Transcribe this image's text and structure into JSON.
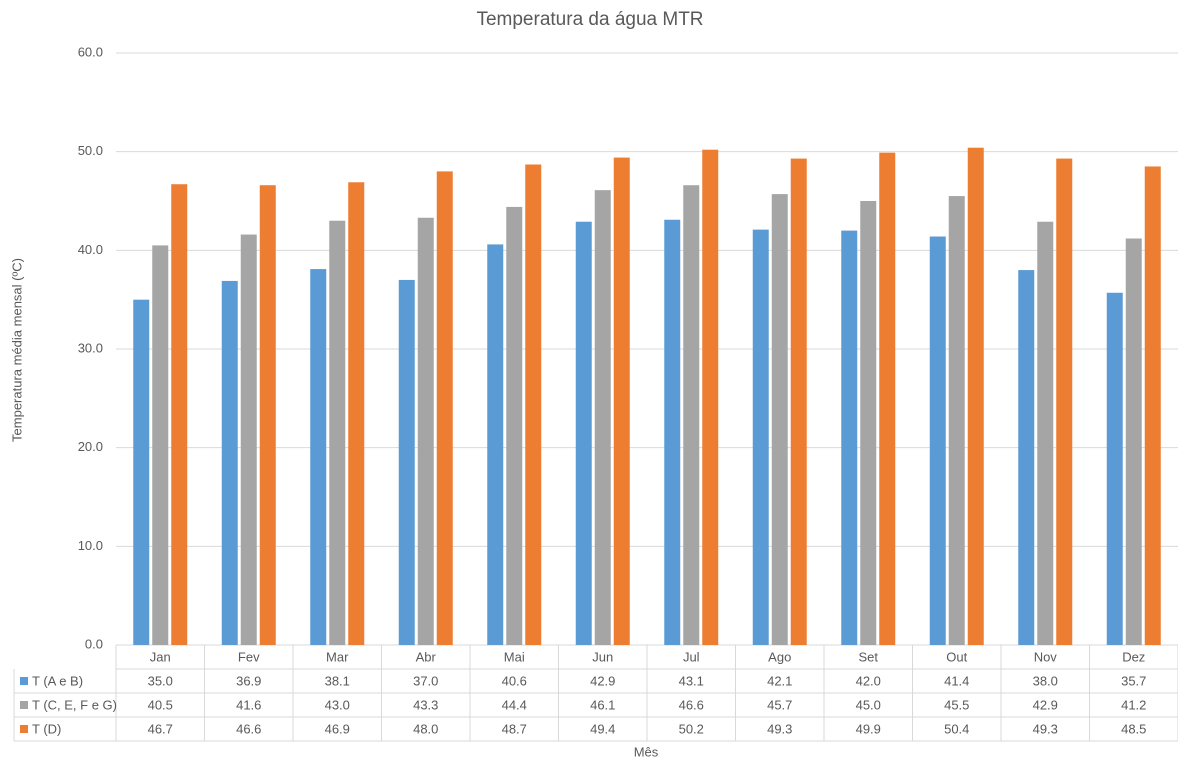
{
  "chart_data": {
    "type": "bar",
    "title": "Temperatura da água MTR",
    "x_label": "Mês",
    "y_label": "Temperatura média mensal (ºC)",
    "categories": [
      "Jan",
      "Fev",
      "Mar",
      "Abr",
      "Mai",
      "Jun",
      "Jul",
      "Ago",
      "Set",
      "Out",
      "Nov",
      "Dez"
    ],
    "series": [
      {
        "name": "T (A e B)",
        "color": "#5b9bd5",
        "values": [
          35.0,
          36.9,
          38.1,
          37.0,
          40.6,
          42.9,
          43.1,
          42.1,
          42.0,
          41.4,
          38.0,
          35.7
        ],
        "value_labels": [
          "35.0",
          "36.9",
          "38.1",
          "37.0",
          "40.6",
          "42.9",
          "43.1",
          "42.1",
          "42.0",
          "41.4",
          "38.0",
          "35.7"
        ]
      },
      {
        "name": "T (C, E, F e G)",
        "color": "#a5a5a5",
        "values": [
          40.5,
          41.6,
          43.0,
          43.3,
          44.4,
          46.1,
          46.6,
          45.7,
          45.0,
          45.5,
          42.9,
          41.2
        ],
        "value_labels": [
          "40.5",
          "41.6",
          "43.0",
          "43.3",
          "44.4",
          "46.1",
          "46.6",
          "45.7",
          "45.0",
          "45.5",
          "42.9",
          "41.2"
        ]
      },
      {
        "name": "T (D)",
        "color": "#ed7d31",
        "values": [
          46.7,
          46.6,
          46.9,
          48.0,
          48.7,
          49.4,
          50.2,
          49.3,
          49.9,
          50.4,
          49.3,
          48.5
        ],
        "value_labels": [
          "46.7",
          "46.6",
          "46.9",
          "48.0",
          "48.7",
          "49.4",
          "50.2",
          "49.3",
          "49.9",
          "50.4",
          "49.3",
          "48.5"
        ]
      }
    ],
    "ylim": [
      0,
      60
    ],
    "yticks": [
      {
        "value": 0,
        "label": "0.0"
      },
      {
        "value": 10,
        "label": "10.0"
      },
      {
        "value": 20,
        "label": "20.0"
      },
      {
        "value": 30,
        "label": "30.0"
      },
      {
        "value": 40,
        "label": "40.0"
      },
      {
        "value": 50,
        "label": "50.0"
      },
      {
        "value": 60,
        "label": "60.0"
      }
    ],
    "grid": true
  }
}
